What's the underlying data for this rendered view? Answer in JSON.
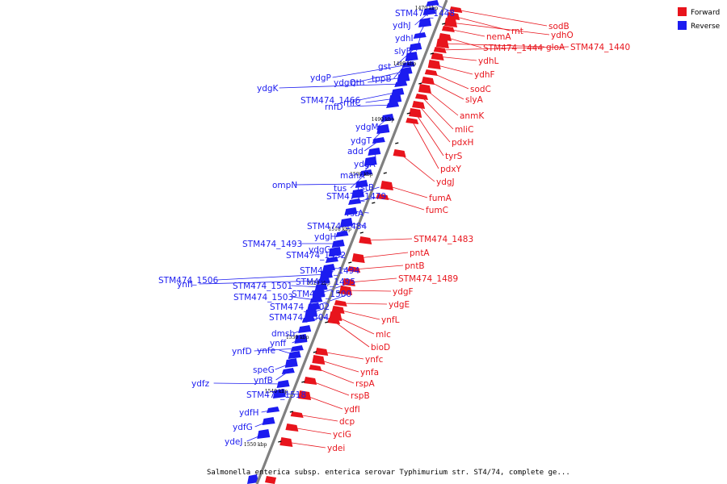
{
  "caption": "Salmonella enterica subsp. enterica serovar Typhimurium str. ST4/74, complete ge...",
  "legend": [
    {
      "label": "Forward",
      "color": "#e8141c"
    },
    {
      "label": "Reverse",
      "color": "#1c1cf0"
    }
  ],
  "colors": {
    "forward": "#e8141c",
    "reverse": "#1c1cf0",
    "backbone": "#808080"
  },
  "ticks": [
    "1470 kbp",
    "1480 kbp",
    "1490 kbp",
    "1500 kbp",
    "1510 kbp",
    "1520 kbp",
    "1530 kbp",
    "1540 kbp",
    "1550 kbp"
  ],
  "reverse_genes": [
    "STM474_1448",
    "ydhJ",
    "ydhI",
    "slyB",
    "gst",
    "tppB",
    "ydgP",
    "ydgQ",
    "nth",
    "ydgK",
    "STM474_1466",
    "rnfC",
    "rnfD",
    "ydgM",
    "ydgT",
    "add",
    "ydgA",
    "manA",
    "tus",
    "ompN",
    "rstB",
    "STM474_1479",
    "rstA",
    "STM474_1484",
    "ydgH",
    "STM474_1493",
    "ydgG",
    "STM474_1492",
    "STM474_1494",
    "STM474_1506",
    "ynfI",
    "STM474_1501",
    "STM474_1495",
    "STM474_1503",
    "STM474_1500",
    "STM474_1502",
    "STM474_1504",
    "dmsb",
    "ynff",
    "ynfD",
    "ynfe",
    "speG",
    "ynfB",
    "ydfz",
    "STM474_1518",
    "ydfH",
    "ydfG",
    "ydeJ"
  ],
  "forward_genes": [
    "sodB",
    "rnt",
    "ydhO",
    "nemA",
    "STM474_1444",
    "gloA",
    "STM474_1440",
    "ydhL",
    "ydhF",
    "sodC",
    "slyA",
    "anmK",
    "mliC",
    "pdxH",
    "tyrS",
    "pdxY",
    "ydgJ",
    "fumA",
    "fumC",
    "STM474_1483",
    "pntA",
    "pntB",
    "STM474_1489",
    "ydgF",
    "ydgE",
    "ynfL",
    "mlc",
    "bioD",
    "ynfc",
    "ynfa",
    "rspA",
    "rspB",
    "ydfI",
    "dcp",
    "yciG",
    "ydei"
  ]
}
